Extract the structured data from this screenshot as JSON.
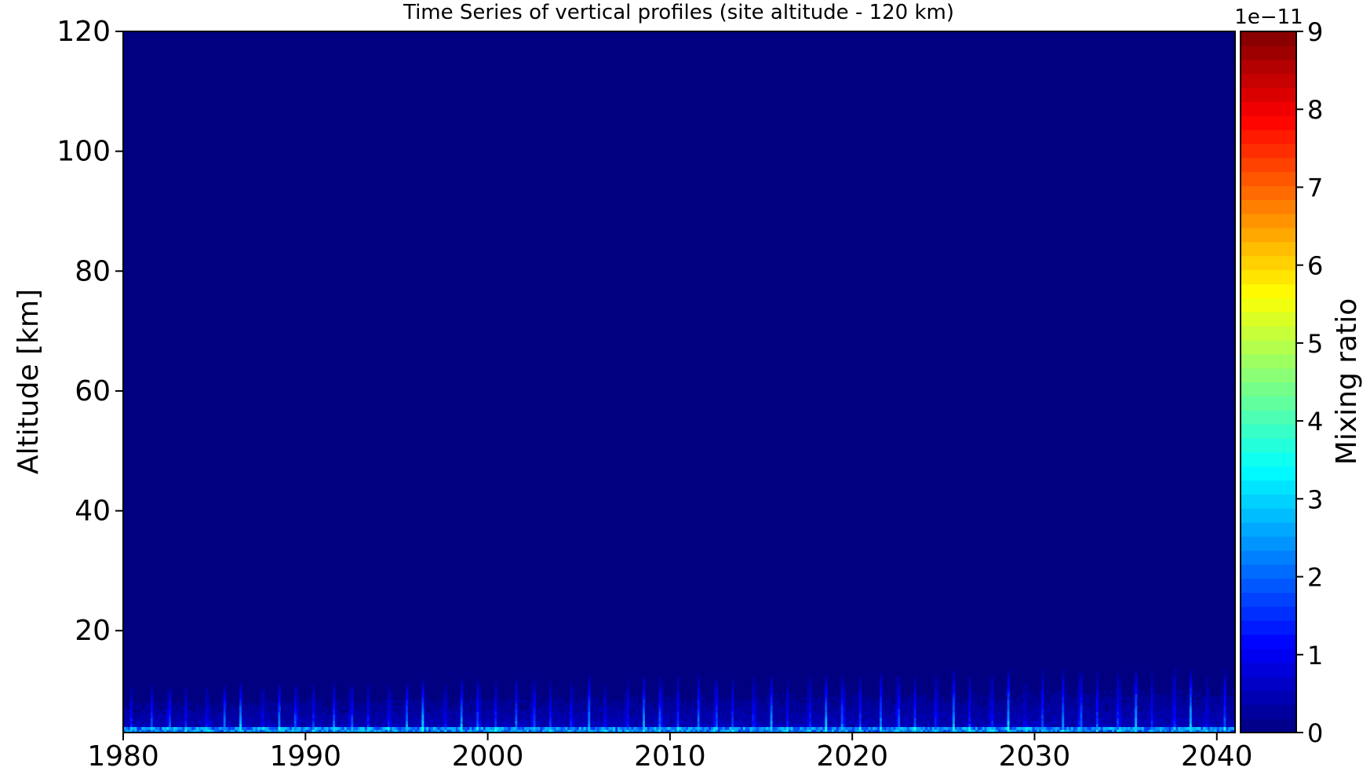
{
  "chart_data": {
    "type": "heatmap",
    "title": "Time Series of vertical profiles (site altitude - 120 km)",
    "xlabel": "",
    "ylabel": "Altitude [km]",
    "xlim": [
      1980,
      2041
    ],
    "ylim": [
      3,
      120
    ],
    "x_ticks": [
      {
        "value": 1980,
        "label": "1980"
      },
      {
        "value": 1990,
        "label": "1990"
      },
      {
        "value": 2000,
        "label": "2000"
      },
      {
        "value": 2010,
        "label": "2010"
      },
      {
        "value": 2020,
        "label": "2020"
      },
      {
        "value": 2030,
        "label": "2030"
      },
      {
        "value": 2040,
        "label": "2040"
      }
    ],
    "y_ticks": [
      {
        "value": 20,
        "label": "20"
      },
      {
        "value": 40,
        "label": "40"
      },
      {
        "value": 60,
        "label": "60"
      },
      {
        "value": 80,
        "label": "80"
      },
      {
        "value": 100,
        "label": "100"
      },
      {
        "value": 120,
        "label": "120"
      }
    ],
    "colorbar": {
      "label": "Mixing ratio",
      "offset_label": "1e−11",
      "range": [
        0,
        9
      ],
      "ticks": [
        {
          "value": 0,
          "label": "0"
        },
        {
          "value": 1,
          "label": "1"
        },
        {
          "value": 2,
          "label": "2"
        },
        {
          "value": 3,
          "label": "3"
        },
        {
          "value": 4,
          "label": "4"
        },
        {
          "value": 5,
          "label": "5"
        },
        {
          "value": 6,
          "label": "6"
        },
        {
          "value": 7,
          "label": "7"
        },
        {
          "value": 8,
          "label": "8"
        },
        {
          "value": 9,
          "label": "9"
        }
      ],
      "levels": 50,
      "colormap": "jet"
    },
    "background_color": "#000080",
    "feature": {
      "description_altitude_top_km": [
        11,
        15
      ],
      "annual_peaks_start_year": 1980,
      "annual_peaks_end_year": 2040,
      "peak_value_range": [
        1.0,
        3.2
      ],
      "near_surface_value": 3.0
    }
  }
}
